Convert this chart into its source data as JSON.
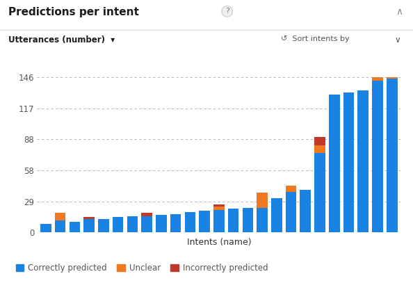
{
  "title": "Predictions per intent",
  "xlabel": "Intents (name)",
  "ylabel_label": "Utterances (number)",
  "yticks": [
    0,
    29,
    58,
    88,
    117,
    146
  ],
  "ylim": [
    0,
    155
  ],
  "background_color": "#ffffff",
  "bar_width": 0.75,
  "correctly_predicted": [
    8,
    11,
    10,
    12,
    12,
    14,
    15,
    15,
    16,
    17,
    19,
    20,
    21,
    22,
    23,
    23,
    32,
    38,
    40,
    75,
    130,
    132,
    134,
    143,
    145
  ],
  "unclear": [
    0,
    7,
    0,
    0,
    0,
    0,
    0,
    0,
    0,
    0,
    0,
    0,
    3,
    0,
    0,
    14,
    0,
    6,
    0,
    7,
    0,
    0,
    0,
    3,
    1
  ],
  "incorrectly_predicted": [
    0,
    0,
    0,
    2,
    0,
    0,
    0,
    3,
    0,
    0,
    0,
    0,
    2,
    0,
    0,
    0,
    0,
    0,
    0,
    8,
    0,
    0,
    0,
    0,
    0
  ],
  "color_correct": "#1a82e2",
  "color_unclear": "#f07820",
  "color_incorrect": "#c0392b",
  "legend_labels": [
    "Correctly predicted",
    "Unclear",
    "Incorrectly predicted"
  ],
  "title_fontsize": 11,
  "axis_label_fontsize": 9,
  "tick_fontsize": 8.5,
  "legend_fontsize": 8.5
}
